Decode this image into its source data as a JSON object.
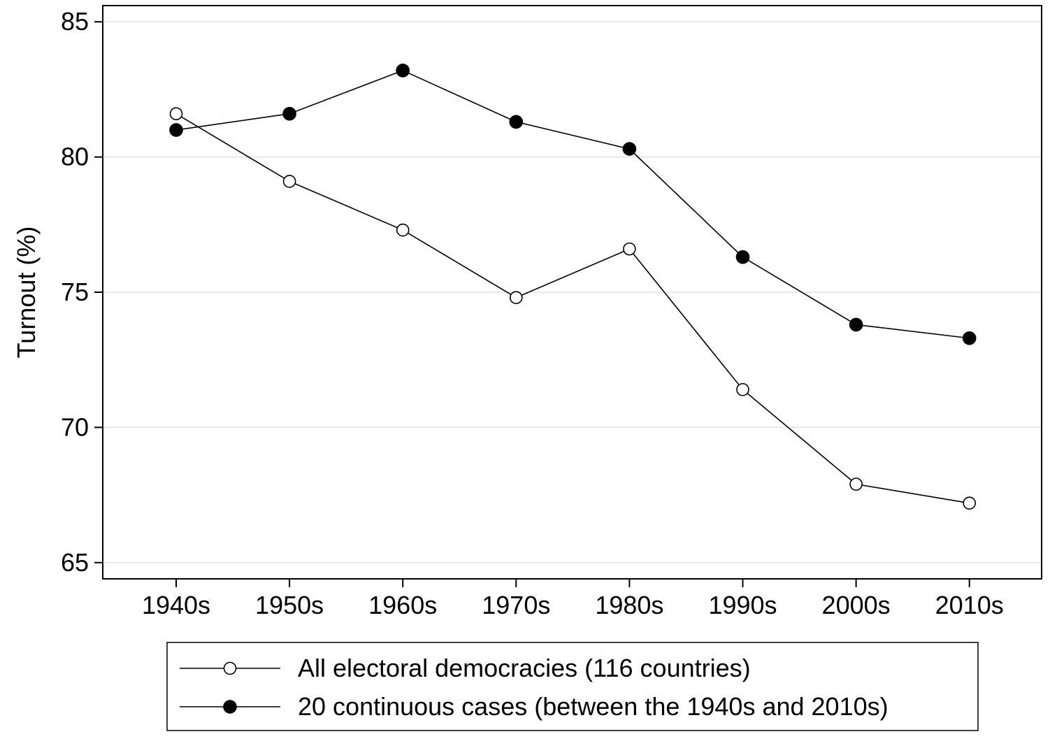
{
  "chart_data": {
    "type": "line",
    "title": "",
    "xlabel": "",
    "ylabel": "Turnout (%)",
    "categories": [
      "1940s",
      "1950s",
      "1960s",
      "1970s",
      "1980s",
      "1990s",
      "2000s",
      "2010s"
    ],
    "ylim": [
      64.4,
      85.6
    ],
    "yticks": [
      65,
      70,
      75,
      80,
      85
    ],
    "grid": "horizontal",
    "legend_position": "bottom",
    "series": [
      {
        "name": "All electoral democracies (116 countries)",
        "marker": "hollow-circle",
        "values": [
          81.6,
          79.1,
          77.3,
          74.8,
          76.6,
          71.4,
          67.9,
          67.2
        ]
      },
      {
        "name": "20 continuous cases (between the 1940s and 2010s)",
        "marker": "filled-circle",
        "values": [
          81.0,
          81.6,
          83.2,
          81.3,
          80.3,
          76.3,
          73.8,
          73.3
        ]
      }
    ],
    "colors": {
      "line": "#000000",
      "grid": "#dcdcdc",
      "background": "#ffffff"
    }
  }
}
